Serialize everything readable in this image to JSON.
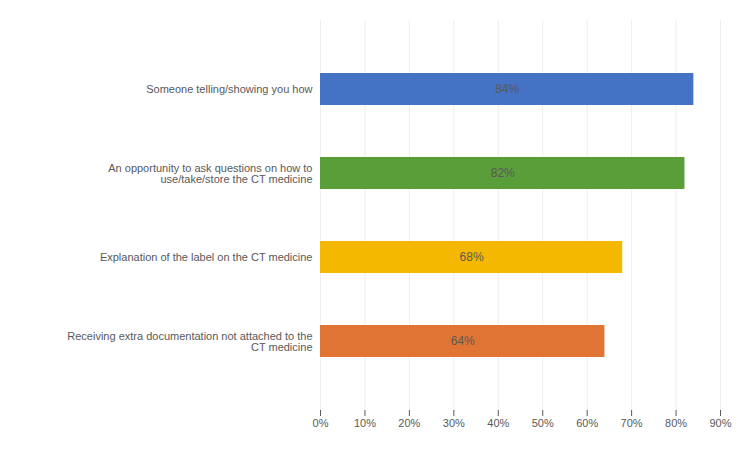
{
  "chart_data": {
    "type": "bar",
    "orientation": "horizontal",
    "categories": [
      "Receiving extra documentation not attached to the\nCT medicine",
      "Explanation of the label on the CT medicine",
      "An opportunity to ask questions on how to\nuse/take/store the CT medicine",
      "Someone telling/showing you how"
    ],
    "values": [
      64,
      68,
      82,
      84
    ],
    "value_labels": [
      "64%",
      "68%",
      "82%",
      "84%"
    ],
    "data_labels": true,
    "colors": [
      "#E07434",
      "#F5B800",
      "#5A9E3A",
      "#4472C4"
    ],
    "xlim": [
      0,
      90
    ],
    "xticks": [
      {
        "value": 0,
        "label": "0%"
      },
      {
        "value": 10,
        "label": "10%"
      },
      {
        "value": 20,
        "label": "20%"
      },
      {
        "value": 30,
        "label": "30%"
      },
      {
        "value": 40,
        "label": "40%"
      },
      {
        "value": 50,
        "label": "50%"
      },
      {
        "value": 60,
        "label": "60%"
      },
      {
        "value": 70,
        "label": "70%"
      },
      {
        "value": 80,
        "label": "80%"
      },
      {
        "value": 90,
        "label": "90%"
      }
    ],
    "grid": true
  }
}
